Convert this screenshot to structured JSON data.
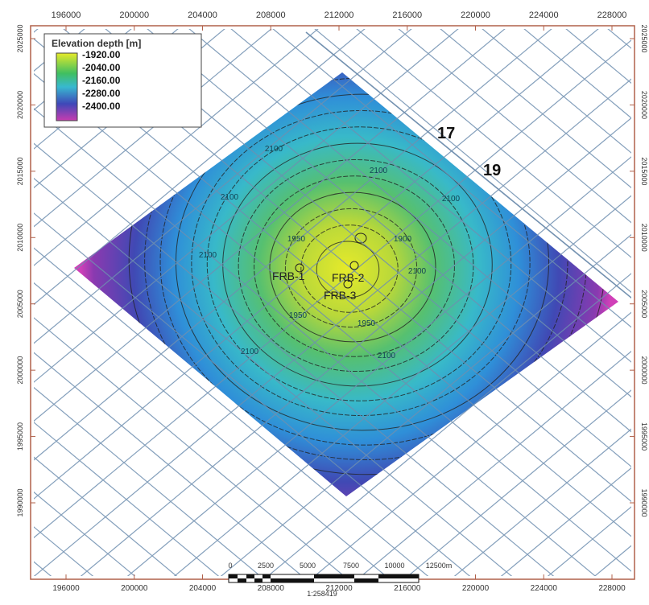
{
  "map": {
    "x_ticks": [
      196000,
      200000,
      204000,
      208000,
      212000,
      216000,
      220000,
      224000,
      228000
    ],
    "y_ticks": [
      2025000,
      2020000,
      2015000,
      2010000,
      2005000,
      2000000,
      1995000,
      1990000
    ],
    "legend": {
      "title": "Elevation depth [m]",
      "labels": [
        "-1920.00",
        "-2040.00",
        "-2160.00",
        "-2280.00",
        "-2400.00"
      ]
    },
    "line_labels": [
      "17",
      "19"
    ],
    "well_labels": [
      "FRB-1",
      "FRB-2",
      "FRB-3"
    ],
    "contour_labels": [
      "2100",
      "2100",
      "2100",
      "2100",
      "2100",
      "2100",
      "2100",
      "2100",
      "1950",
      "1950",
      "1950",
      "1900"
    ],
    "scale_bar": {
      "labels": [
        "0",
        "2500",
        "5000",
        "7500",
        "10000",
        "12500m"
      ],
      "ratio": "1:258419"
    }
  }
}
